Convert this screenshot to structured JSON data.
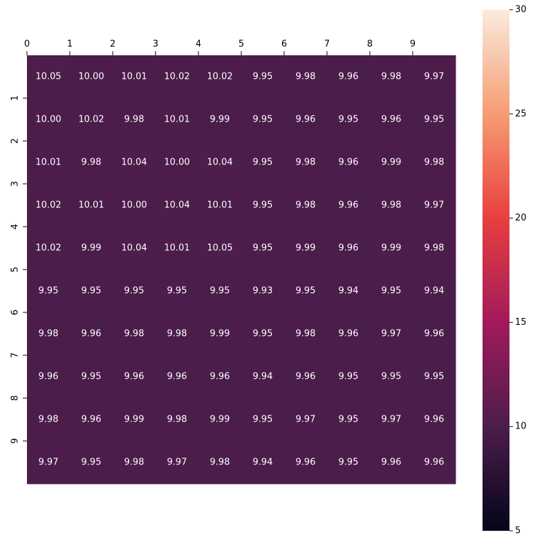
{
  "chart_data": {
    "type": "heatmap",
    "values": [
      [
        10.05,
        10.0,
        10.01,
        10.02,
        10.02,
        9.95,
        9.98,
        9.96,
        9.98,
        9.97
      ],
      [
        10.0,
        10.02,
        9.98,
        10.01,
        9.99,
        9.95,
        9.96,
        9.95,
        9.96,
        9.95
      ],
      [
        10.01,
        9.98,
        10.04,
        10.0,
        10.04,
        9.95,
        9.98,
        9.96,
        9.99,
        9.98
      ],
      [
        10.02,
        10.01,
        10.0,
        10.04,
        10.01,
        9.95,
        9.98,
        9.96,
        9.98,
        9.97
      ],
      [
        10.02,
        9.99,
        10.04,
        10.01,
        10.05,
        9.95,
        9.99,
        9.96,
        9.99,
        9.98
      ],
      [
        9.95,
        9.95,
        9.95,
        9.95,
        9.95,
        9.93,
        9.95,
        9.94,
        9.95,
        9.94
      ],
      [
        9.98,
        9.96,
        9.98,
        9.98,
        9.99,
        9.95,
        9.98,
        9.96,
        9.97,
        9.96
      ],
      [
        9.96,
        9.95,
        9.96,
        9.96,
        9.96,
        9.94,
        9.96,
        9.95,
        9.95,
        9.95
      ],
      [
        9.98,
        9.96,
        9.99,
        9.98,
        9.99,
        9.95,
        9.97,
        9.95,
        9.97,
        9.96
      ],
      [
        9.97,
        9.95,
        9.98,
        9.97,
        9.98,
        9.94,
        9.96,
        9.95,
        9.96,
        9.96
      ]
    ],
    "value_labels": [
      [
        "10.05",
        "10.00",
        "10.01",
        "10.02",
        "10.02",
        "9.95",
        "9.98",
        "9.96",
        "9.98",
        "9.97"
      ],
      [
        "10.00",
        "10.02",
        "9.98",
        "10.01",
        "9.99",
        "9.95",
        "9.96",
        "9.95",
        "9.96",
        "9.95"
      ],
      [
        "10.01",
        "9.98",
        "10.04",
        "10.00",
        "10.04",
        "9.95",
        "9.98",
        "9.96",
        "9.99",
        "9.98"
      ],
      [
        "10.02",
        "10.01",
        "10.00",
        "10.04",
        "10.01",
        "9.95",
        "9.98",
        "9.96",
        "9.98",
        "9.97"
      ],
      [
        "10.02",
        "9.99",
        "10.04",
        "10.01",
        "10.05",
        "9.95",
        "9.99",
        "9.96",
        "9.99",
        "9.98"
      ],
      [
        "9.95",
        "9.95",
        "9.95",
        "9.95",
        "9.95",
        "9.93",
        "9.95",
        "9.94",
        "9.95",
        "9.94"
      ],
      [
        "9.98",
        "9.96",
        "9.98",
        "9.98",
        "9.99",
        "9.95",
        "9.98",
        "9.96",
        "9.97",
        "9.96"
      ],
      [
        "9.96",
        "9.95",
        "9.96",
        "9.96",
        "9.96",
        "9.94",
        "9.96",
        "9.95",
        "9.95",
        "9.95"
      ],
      [
        "9.98",
        "9.96",
        "9.99",
        "9.98",
        "9.99",
        "9.95",
        "9.97",
        "9.95",
        "9.97",
        "9.96"
      ],
      [
        "9.97",
        "9.95",
        "9.98",
        "9.97",
        "9.98",
        "9.94",
        "9.96",
        "9.95",
        "9.96",
        "9.96"
      ]
    ],
    "xlim": [
      0,
      10
    ],
    "ylim": [
      0,
      10
    ],
    "xticks": [
      0,
      1,
      2,
      3,
      4,
      5,
      6,
      7,
      8,
      9
    ],
    "yticks": [
      1,
      2,
      3,
      4,
      5,
      6,
      7,
      8,
      9
    ],
    "clim": [
      5,
      30
    ],
    "cticks": [
      5,
      10,
      15,
      20,
      25,
      30
    ],
    "colormap": [
      "#03051a",
      "#4c1d4b",
      "#a11a5b",
      "#e83f3f",
      "#f69c73",
      "#faebdd"
    ]
  }
}
